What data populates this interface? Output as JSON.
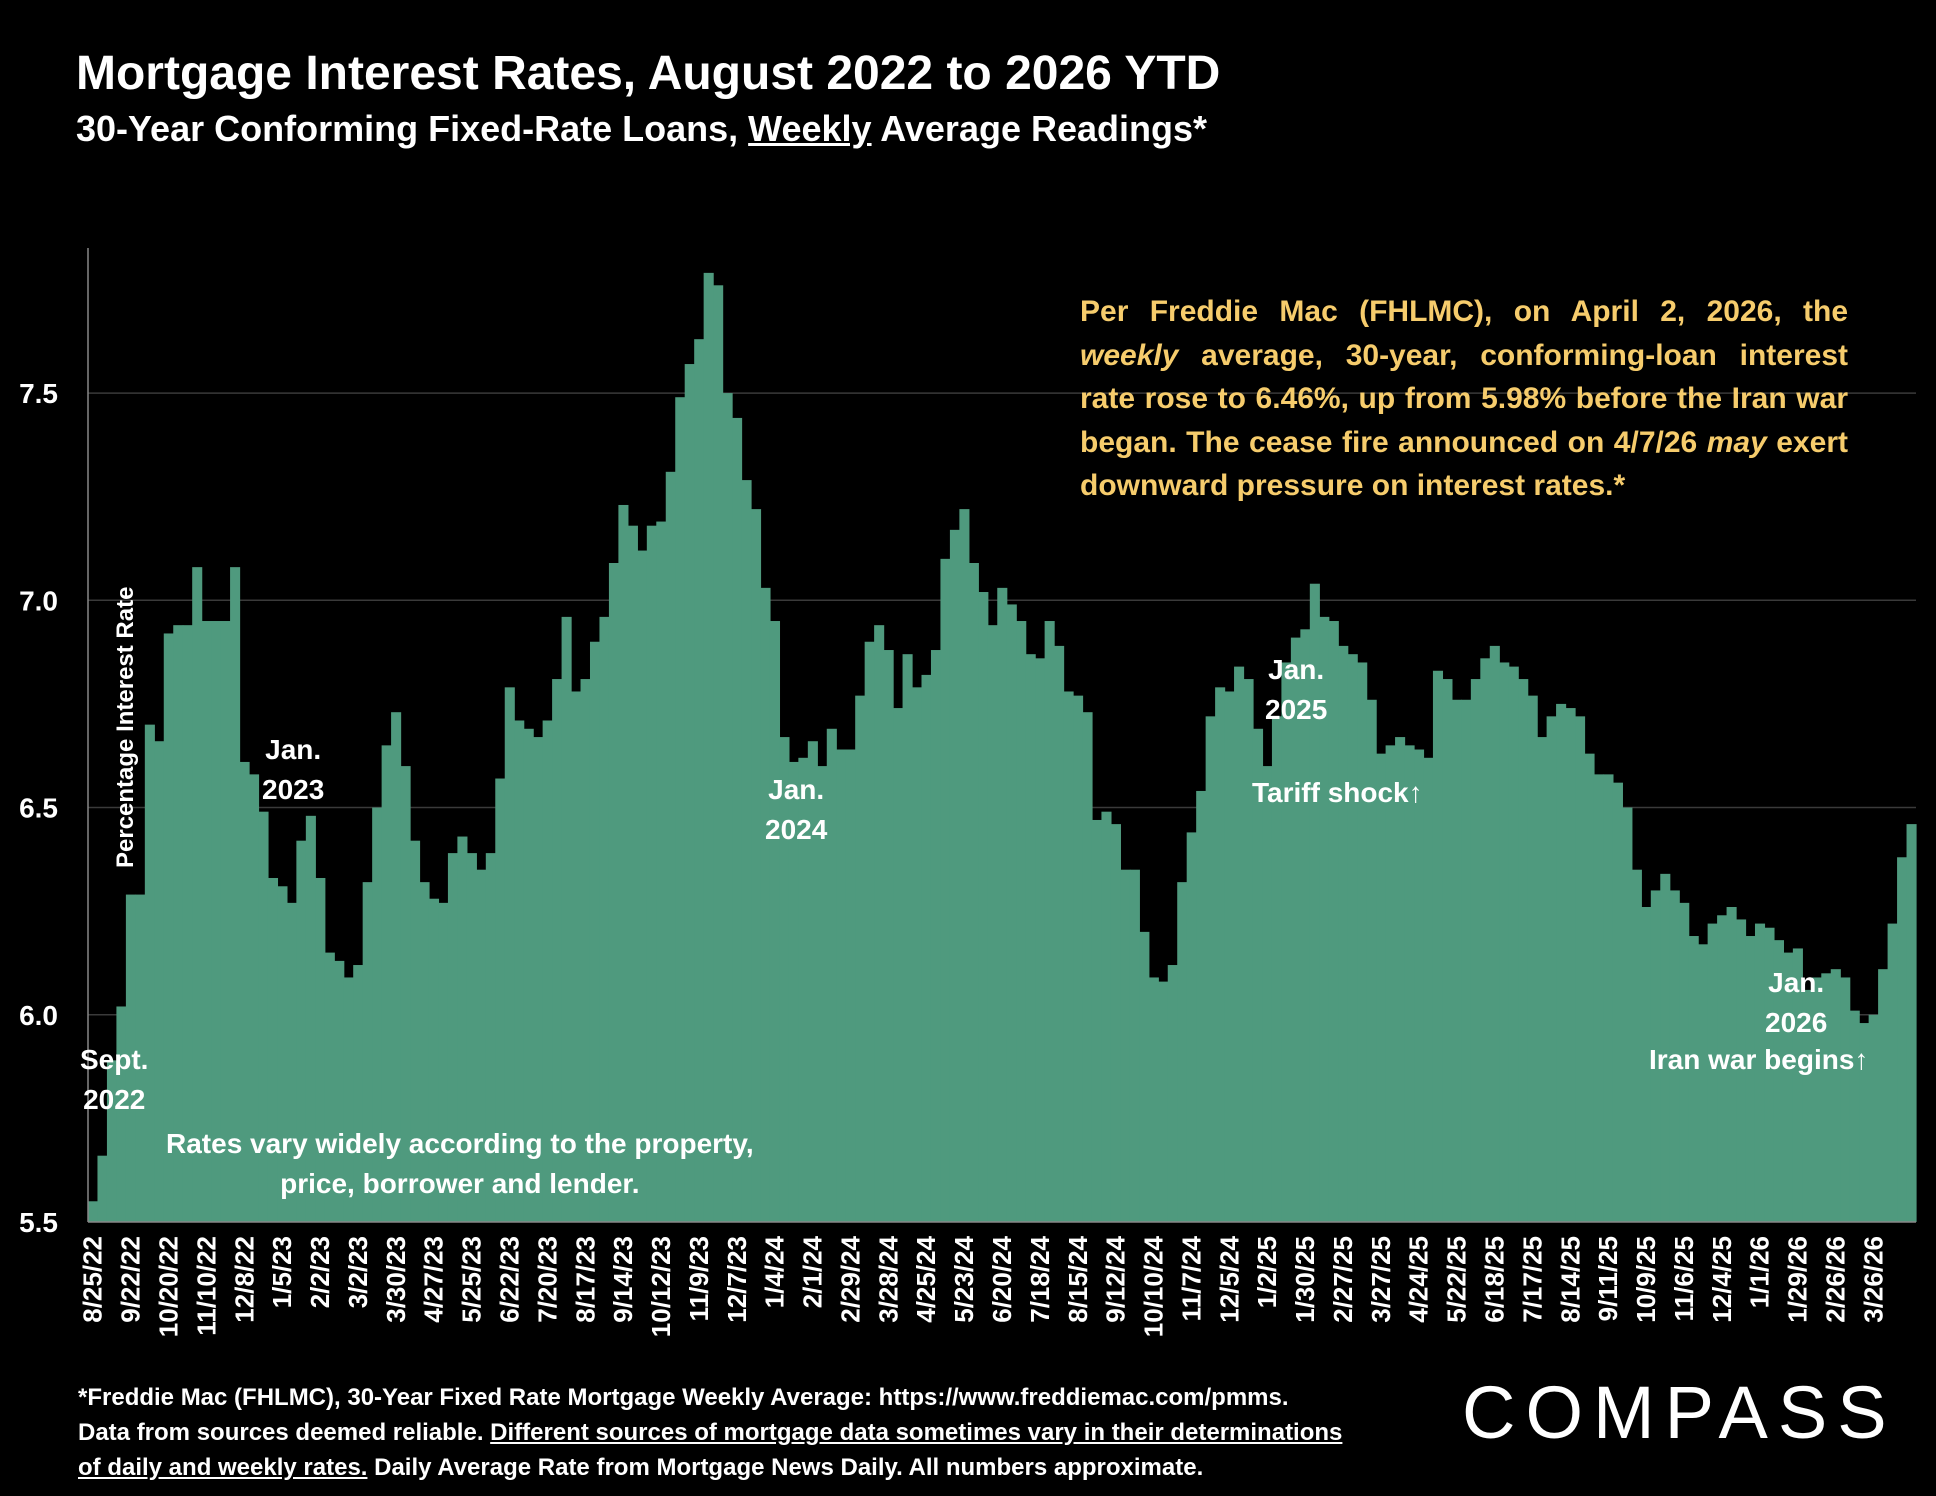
{
  "title": "Mortgage Interest Rates, August 2022 to 2026 YTD",
  "subtitle": {
    "before": "30-Year Conforming Fixed-Rate Loans, ",
    "underlined": "Weekly",
    "after": " Average Readings*"
  },
  "colors": {
    "bars": "#4f9a7e",
    "background": "#000000",
    "callout_text": "#f6cc6c",
    "text": "#ffffff",
    "gridlines": "#3a3a3a"
  },
  "callout": {
    "p1": "Per Freddie Mac (FHLMC), on April 2, 2026, the ",
    "em1": "weekly",
    "p2": " average, 30-year, conforming-loan interest rate rose to 6.46%, up from 5.98% before the Iran war began. The cease fire announced on 4/7/26 ",
    "em2": "may",
    "p3": " exert downward pressure on interest rates.*"
  },
  "annotations": {
    "sept_2022": [
      "Sept.",
      "2022"
    ],
    "jan_2023": [
      "Jan.",
      "2023"
    ],
    "jan_2024": [
      "Jan.",
      "2024"
    ],
    "jan_2025": [
      "Jan.",
      "2025"
    ],
    "jan_2026": [
      "Jan.",
      "2026"
    ],
    "tariff_shock": "Tariff shock↑",
    "iran_war": "Iran war begins↑",
    "rates_vary": [
      "Rates vary widely according to the property,",
      "price, borrower and lender."
    ]
  },
  "footnote": {
    "line1": "*Freddie Mac (FHLMC), 30-Year Fixed Rate Mortgage Weekly Average:  https://www.freddiemac.com/pmms.",
    "line2_plain": "Data from sources deemed reliable. ",
    "line2_underlined": "Different sources of mortgage data sometimes vary in their determinations",
    "line3_underlined": "of daily and weekly rates.",
    "line3_plain": " Daily Average Rate from Mortgage News Daily. All numbers approximate."
  },
  "logo": "COMPASS",
  "chart_data": {
    "type": "bar",
    "title": "Mortgage Interest Rates, August 2022 to 2026 YTD",
    "ylabel": "Percentage Interest  Rate",
    "xlabel": "",
    "ylim": [
      5.5,
      7.85
    ],
    "yticks": [
      5.5,
      6.0,
      6.5,
      7.0,
      7.5
    ],
    "ytick_labels": [
      "5.5",
      "6.0",
      "6.5",
      "7.0",
      "7.5"
    ],
    "grid": true,
    "legend": "none",
    "x_tick_labels": [
      "8/25/22",
      "9/22/22",
      "10/20/22",
      "11/10/22",
      "12/8/22",
      "1/5/23",
      "2/2/23",
      "3/2/23",
      "3/30/23",
      "4/27/23",
      "5/25/23",
      "6/22/23",
      "7/20/23",
      "8/17/23",
      "9/14/23",
      "10/12/23",
      "11/9/23",
      "12/7/23",
      "1/4/24",
      "2/1/24",
      "2/29/24",
      "3/28/24",
      "4/25/24",
      "5/23/24",
      "6/20/24",
      "7/18/24",
      "8/15/24",
      "9/12/24",
      "10/10/24",
      "11/7/24",
      "12/5/24",
      "1/2/25",
      "1/30/25",
      "2/27/25",
      "3/27/25",
      "4/24/25",
      "5/22/25",
      "6/18/25",
      "7/17/25",
      "8/14/25",
      "9/11/25",
      "10/9/25",
      "11/6/25",
      "12/4/25",
      "1/1/26",
      "1/29/26",
      "2/26/26",
      "3/26/26"
    ],
    "series": [
      {
        "values": [
          5.55,
          5.66,
          5.89,
          6.02,
          6.29,
          6.29,
          6.7,
          6.66,
          6.92,
          6.94,
          6.94,
          7.08,
          6.95,
          6.95,
          6.95,
          7.08,
          6.61,
          6.58,
          6.49,
          6.33,
          6.31,
          6.27,
          6.42,
          6.48,
          6.33,
          6.15,
          6.13,
          6.09,
          6.12,
          6.32,
          6.5,
          6.65,
          6.73,
          6.6,
          6.42,
          6.32,
          6.28,
          6.27,
          6.39,
          6.43,
          6.39,
          6.35,
          6.39,
          6.57,
          6.79,
          6.71,
          6.69,
          6.67,
          6.71,
          6.81,
          6.96,
          6.78,
          6.81,
          6.9,
          6.96,
          7.09,
          7.23,
          7.18,
          7.12,
          7.18,
          7.19,
          7.31,
          7.49,
          7.57,
          7.63,
          7.79,
          7.76,
          7.5,
          7.44,
          7.29,
          7.22,
          7.03,
          6.95,
          6.67,
          6.61,
          6.62,
          6.66,
          6.6,
          6.69,
          6.64,
          6.64,
          6.77,
          6.9,
          6.94,
          6.88,
          6.74,
          6.87,
          6.79,
          6.82,
          6.88,
          7.1,
          7.17,
          7.22,
          7.09,
          7.02,
          6.94,
          7.03,
          6.99,
          6.95,
          6.87,
          6.86,
          6.95,
          6.89,
          6.78,
          6.77,
          6.73,
          6.47,
          6.49,
          6.46,
          6.35,
          6.35,
          6.2,
          6.09,
          6.08,
          6.12,
          6.32,
          6.44,
          6.54,
          6.72,
          6.79,
          6.78,
          6.84,
          6.81,
          6.69,
          6.6,
          6.72,
          6.85,
          6.91,
          6.93,
          7.04,
          6.96,
          6.95,
          6.89,
          6.87,
          6.85,
          6.76,
          6.63,
          6.65,
          6.67,
          6.65,
          6.64,
          6.62,
          6.83,
          6.81,
          6.76,
          6.76,
          6.81,
          6.86,
          6.89,
          6.85,
          6.84,
          6.81,
          6.77,
          6.67,
          6.72,
          6.75,
          6.74,
          6.72,
          6.63,
          6.58,
          6.58,
          6.56,
          6.5,
          6.35,
          6.26,
          6.3,
          6.34,
          6.3,
          6.27,
          6.19,
          6.17,
          6.22,
          6.24,
          6.26,
          6.23,
          6.19,
          6.22,
          6.21,
          6.18,
          6.15,
          6.16,
          6.06,
          6.09,
          6.1,
          6.11,
          6.09,
          6.01,
          5.98,
          6.0,
          6.11,
          6.22,
          6.38,
          6.46
        ]
      }
    ]
  }
}
